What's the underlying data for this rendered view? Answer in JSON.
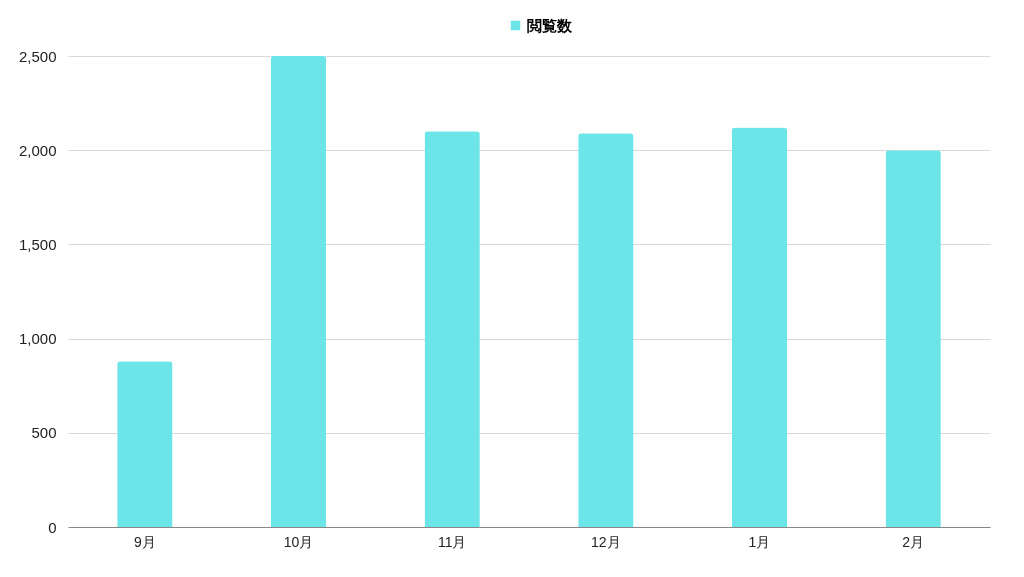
{
  "chart_data": {
    "type": "bar",
    "categories": [
      "9月",
      "10月",
      "11月",
      "12月",
      "1月",
      "2月"
    ],
    "series": [
      {
        "name": "閲覧数",
        "color": "#6ce5e8",
        "values": [
          880,
          2500,
          2100,
          2090,
          2120,
          2000
        ]
      }
    ],
    "ylim": [
      0,
      2500
    ],
    "yticks": [
      0,
      500,
      {
        "value": 1000,
        "label": "1,000"
      },
      {
        "value": 1500,
        "label": "1,500"
      },
      {
        "value": 2000,
        "label": "2,000"
      },
      {
        "value": 2500,
        "label": "2,500"
      }
    ],
    "grid": "y",
    "legend": "top"
  }
}
